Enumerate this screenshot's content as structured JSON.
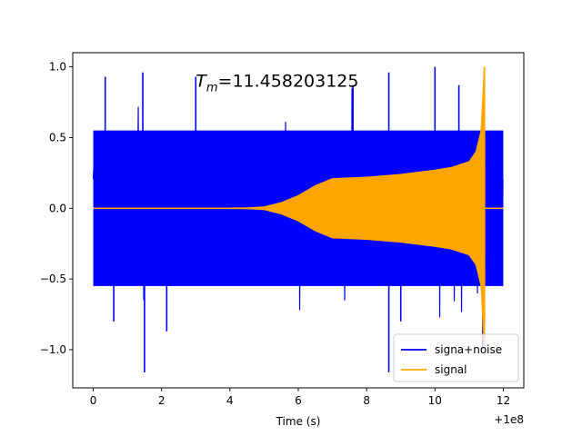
{
  "chart_data": {
    "type": "line",
    "title": "",
    "xlabel": "Time (s)",
    "ylabel": "",
    "x_offset_label": "+1e8",
    "xlim": [
      -0.6,
      12.6
    ],
    "ylim": [
      -1.27,
      1.1
    ],
    "x_ticks": [
      0,
      2,
      4,
      6,
      8,
      10,
      12
    ],
    "x_tick_labels": [
      "0",
      "2",
      "4",
      "6",
      "8",
      "10",
      "12"
    ],
    "y_ticks": [
      1.0,
      0.5,
      0.0,
      -0.5,
      -1.0
    ],
    "y_tick_labels": [
      "1.0",
      "0.5",
      "0.0",
      "−0.5",
      "−1.0"
    ],
    "grid": false,
    "legend_position": "lower-right",
    "annotation": {
      "text_main": "T",
      "text_sub": "m",
      "text_rest": "=11.458203125",
      "x": 3.0,
      "y": 0.86
    },
    "series": [
      {
        "name": "signa+noise",
        "color": "#0000ff",
        "kind": "noise",
        "x_start": 0.0,
        "x_end": 12.0,
        "typical_range": [
          -0.55,
          0.55
        ],
        "peak_range": [
          -1.16,
          1.0
        ],
        "outlier_points": [
          {
            "x": 0.35,
            "y": 0.93
          },
          {
            "x": 0.6,
            "y": -0.8
          },
          {
            "x": 1.45,
            "y": 0.96
          },
          {
            "x": 1.5,
            "y": -1.16
          },
          {
            "x": 2.15,
            "y": -0.87
          },
          {
            "x": 3.0,
            "y": 0.93
          },
          {
            "x": 7.6,
            "y": 0.87
          },
          {
            "x": 8.65,
            "y": -1.16
          },
          {
            "x": 8.65,
            "y": 0.96
          },
          {
            "x": 9.0,
            "y": -0.8
          },
          {
            "x": 10.0,
            "y": 1.0
          },
          {
            "x": 10.7,
            "y": 0.87
          },
          {
            "x": 11.4,
            "y": -1.0
          }
        ]
      },
      {
        "name": "signal",
        "color": "#ffa500",
        "kind": "chirp",
        "x_start": 0.0,
        "x_end": 12.0,
        "merger_time": 11.458203125,
        "envelope": [
          {
            "x": 0.0,
            "y": 0.0
          },
          {
            "x": 3.0,
            "y": 0.0
          },
          {
            "x": 4.5,
            "y": 0.003
          },
          {
            "x": 5.0,
            "y": 0.01
          },
          {
            "x": 5.5,
            "y": 0.04
          },
          {
            "x": 6.0,
            "y": 0.09
          },
          {
            "x": 6.5,
            "y": 0.16
          },
          {
            "x": 7.0,
            "y": 0.21
          },
          {
            "x": 8.0,
            "y": 0.22
          },
          {
            "x": 9.0,
            "y": 0.24
          },
          {
            "x": 10.0,
            "y": 0.27
          },
          {
            "x": 10.5,
            "y": 0.29
          },
          {
            "x": 11.0,
            "y": 0.33
          },
          {
            "x": 11.2,
            "y": 0.4
          },
          {
            "x": 11.35,
            "y": 0.55
          },
          {
            "x": 11.44,
            "y": 1.0
          },
          {
            "x": 11.47,
            "y": 0.0
          },
          {
            "x": 12.0,
            "y": 0.0
          }
        ],
        "peak": {
          "x": 11.45,
          "y_max": 1.0,
          "y_min": -0.93
        }
      }
    ]
  }
}
